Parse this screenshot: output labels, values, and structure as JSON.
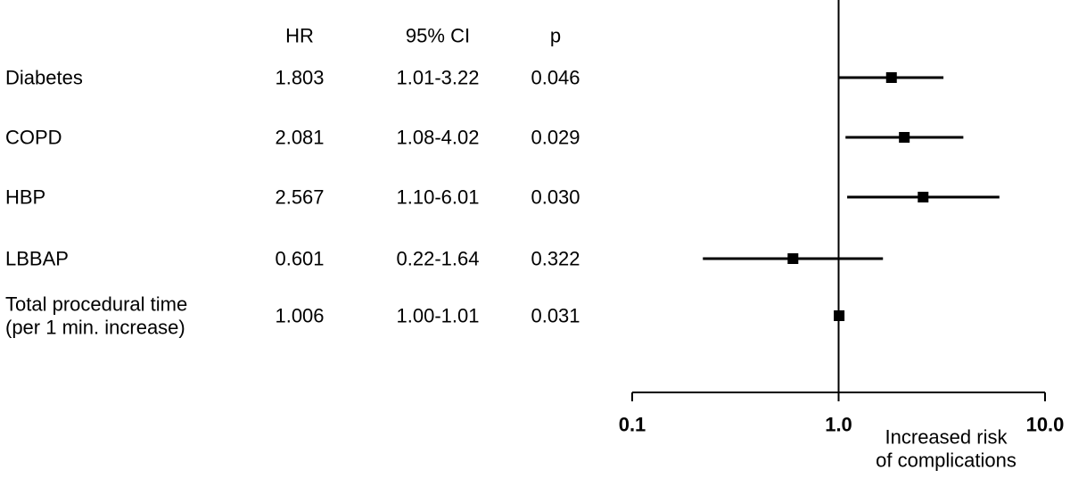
{
  "chart_data": {
    "type": "forest",
    "columns": [
      "HR",
      "95% CI",
      "p"
    ],
    "rows": [
      {
        "label": [
          "Diabetes"
        ],
        "hr": "1.803",
        "ci": "1.01-3.22",
        "p": "0.046",
        "estimate": 1.803,
        "lower": 1.01,
        "upper": 3.22
      },
      {
        "label": [
          "COPD"
        ],
        "hr": "2.081",
        "ci": "1.08-4.02",
        "p": "0.029",
        "estimate": 2.081,
        "lower": 1.08,
        "upper": 4.02
      },
      {
        "label": [
          "HBP"
        ],
        "hr": "2.567",
        "ci": "1.10-6.01",
        "p": "0.030",
        "estimate": 2.567,
        "lower": 1.1,
        "upper": 6.01
      },
      {
        "label": [
          "LBBAP"
        ],
        "hr": "0.601",
        "ci": "0.22-1.64",
        "p": "0.322",
        "estimate": 0.601,
        "lower": 0.22,
        "upper": 1.64
      },
      {
        "label": [
          "Total procedural time",
          "(per 1 min. increase)"
        ],
        "hr": "1.006",
        "ci": "1.00-1.01",
        "p": "0.031",
        "estimate": 1.006,
        "lower": 1.0,
        "upper": 1.01
      }
    ],
    "x_axis": {
      "scale": "log",
      "range": [
        0.1,
        10.0
      ],
      "ticks": [
        0.1,
        1.0,
        10.0
      ],
      "tick_labels": [
        "0.1",
        "1.0",
        "10.0"
      ],
      "reference_line": 1.0,
      "label": [
        "Increased risk",
        "of complications"
      ]
    },
    "colors": {
      "marks": "#000000",
      "text": "#000000",
      "background": "#ffffff"
    }
  }
}
